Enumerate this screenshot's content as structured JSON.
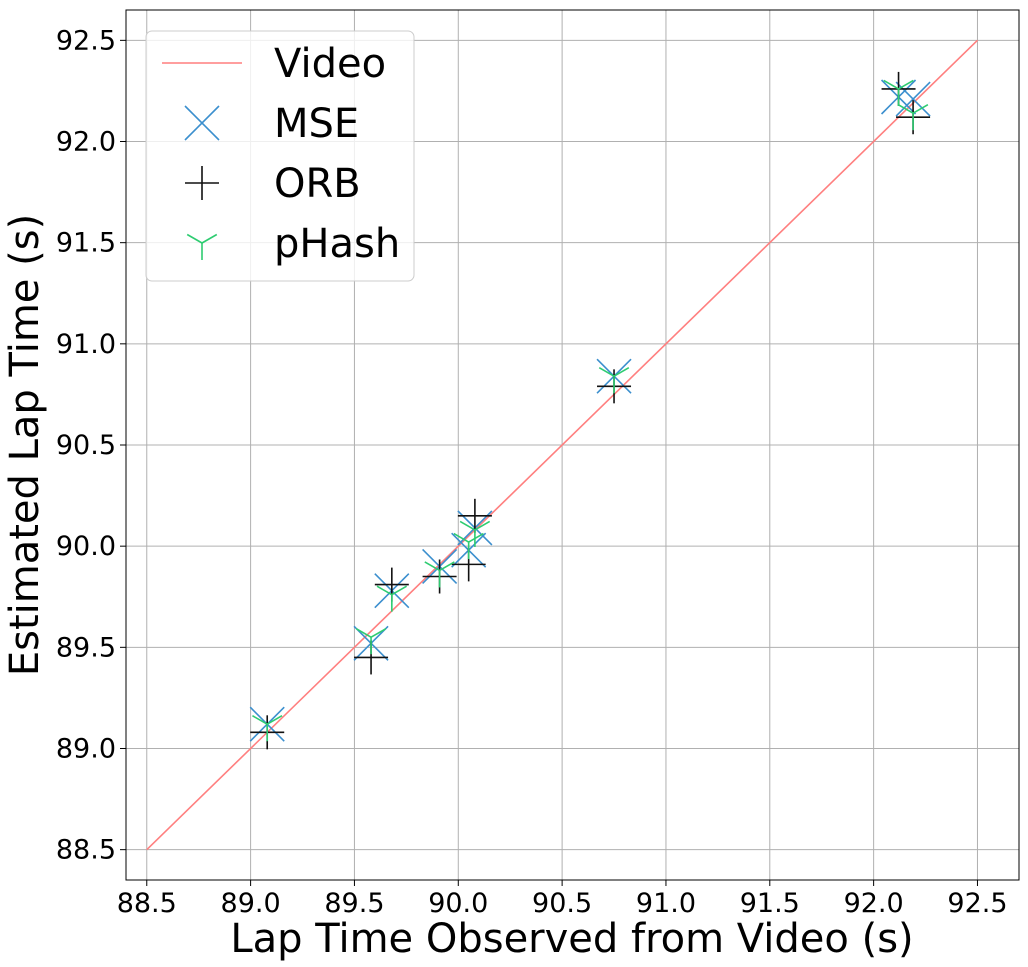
{
  "chart_data": {
    "type": "scatter",
    "xlabel": "Lap Time Observed from Video (s)",
    "ylabel": "Estimated Lap Time (s)",
    "xlim": [
      88.4,
      92.7
    ],
    "ylim": [
      88.35,
      92.65
    ],
    "x_ticks": [
      "88.5",
      "89.0",
      "89.5",
      "90.0",
      "90.5",
      "91.0",
      "91.5",
      "92.0",
      "92.5"
    ],
    "y_ticks": [
      "88.5",
      "89.0",
      "89.5",
      "90.0",
      "90.5",
      "91.0",
      "91.5",
      "92.0",
      "92.5"
    ],
    "grid": true,
    "legend_position": "top-left",
    "reference_line": {
      "name": "Video",
      "x": [
        88.5,
        92.5
      ],
      "y": [
        88.5,
        92.5
      ],
      "color": "#ff7f7f"
    },
    "series": [
      {
        "name": "MSE",
        "marker": "x",
        "color": "#3b8fce",
        "x": [
          89.08,
          89.58,
          89.68,
          89.91,
          90.05,
          90.08,
          90.75,
          92.12,
          92.19
        ],
        "y": [
          89.12,
          89.52,
          89.78,
          89.9,
          89.98,
          90.09,
          90.84,
          92.22,
          92.21
        ]
      },
      {
        "name": "ORB",
        "marker": "+",
        "color": "#111111",
        "x": [
          89.08,
          89.58,
          89.68,
          89.91,
          90.05,
          90.08,
          90.75,
          92.12,
          92.19
        ],
        "y": [
          89.08,
          89.45,
          89.81,
          89.85,
          89.91,
          90.15,
          90.79,
          92.26,
          92.12
        ]
      },
      {
        "name": "pHash",
        "marker": "tri_down",
        "color": "#2ecc71",
        "x": [
          89.08,
          89.58,
          89.68,
          89.91,
          90.05,
          90.08,
          90.75,
          92.12,
          92.19
        ],
        "y": [
          89.12,
          89.55,
          89.76,
          89.88,
          90.02,
          90.08,
          90.84,
          92.26,
          92.14
        ]
      }
    ]
  }
}
